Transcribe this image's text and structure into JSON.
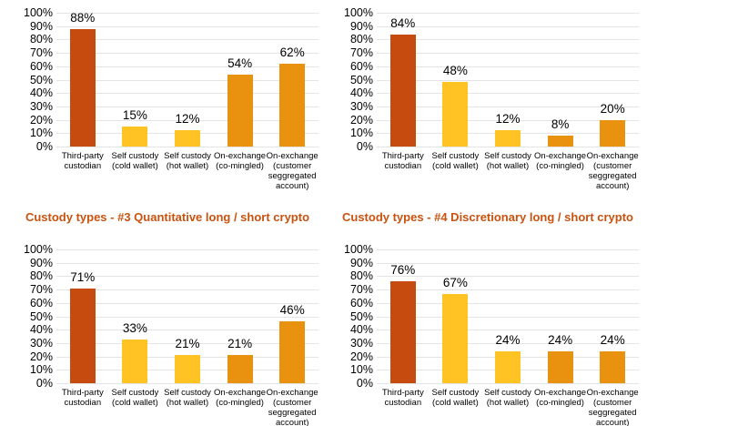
{
  "page": {
    "background": "#ffffff",
    "description": "Four bar charts comparing crypto fund custody types"
  },
  "style": {
    "accent_title_color": "#C9520F",
    "bar_color_third_party_custodian": "#C54B0E",
    "bar_color_self_custody": "#FFC323",
    "bar_color_on_exchange": "#E89210",
    "gridline_color": "#E4E4E4",
    "text_color": "#000000"
  },
  "chart_data": [
    {
      "type": "bar",
      "position": "top-left",
      "title": "",
      "categories": [
        "Third-party custodian",
        "Self custody (cold wallet)",
        "Self custody (hot wallet)",
        "On-exchange (co-mingled)",
        "On-exchange (customer seggregated account)"
      ],
      "category_lines": [
        [
          "Third-party",
          "custodian"
        ],
        [
          "Self custody",
          "(cold wallet)"
        ],
        [
          "Self custody",
          "(hot wallet)"
        ],
        [
          "On-exchange",
          "(co-mingled)"
        ],
        [
          "On-exchange",
          "(customer",
          "seggregated",
          "account)"
        ]
      ],
      "values": [
        88,
        15,
        12,
        54,
        62
      ],
      "data_labels": [
        "88%",
        "15%",
        "12%",
        "54%",
        "62%"
      ],
      "bar_colors": [
        "#C54B0E",
        "#FFC323",
        "#FFC323",
        "#E89210",
        "#E89210"
      ],
      "ylim": [
        0,
        100
      ],
      "ytick_step": 10,
      "ytick_labels": [
        "0%",
        "10%",
        "20%",
        "30%",
        "40%",
        "50%",
        "60%",
        "70%",
        "80%",
        "90%",
        "100%"
      ],
      "grid": true,
      "legend": false
    },
    {
      "type": "bar",
      "position": "top-right",
      "title": "",
      "categories": [
        "Third-party custodian",
        "Self custody (cold wallet)",
        "Self custody (hot wallet)",
        "On-exchange (co-mingled)",
        "On-exchange (customer seggregated account)"
      ],
      "category_lines": [
        [
          "Third-party",
          "custodian"
        ],
        [
          "Self custody",
          "(cold wallet)"
        ],
        [
          "Self custody",
          "(hot wallet)"
        ],
        [
          "On-exchange",
          "(co-mingled)"
        ],
        [
          "On-exchange",
          "(customer",
          "seggregated",
          "account)"
        ]
      ],
      "values": [
        84,
        48,
        12,
        8,
        20
      ],
      "data_labels": [
        "84%",
        "48%",
        "12%",
        "8%",
        "20%"
      ],
      "bar_colors": [
        "#C54B0E",
        "#FFC323",
        "#FFC323",
        "#E89210",
        "#E89210"
      ],
      "ylim": [
        0,
        100
      ],
      "ytick_step": 10,
      "ytick_labels": [
        "0%",
        "10%",
        "20%",
        "30%",
        "40%",
        "50%",
        "60%",
        "70%",
        "80%",
        "90%",
        "100%"
      ],
      "grid": true,
      "legend": false
    },
    {
      "type": "bar",
      "position": "bottom-left",
      "title": "Custody types - #3 Quantitative long / short crypto",
      "categories": [
        "Third-party custodian",
        "Self custody (cold wallet)",
        "Self custody (hot wallet)",
        "On-exchange (co-mingled)",
        "On-exchange (customer seggregated account)"
      ],
      "category_lines": [
        [
          "Third-party",
          "custodian"
        ],
        [
          "Self custody",
          "(cold wallet)"
        ],
        [
          "Self custody",
          "(hot wallet)"
        ],
        [
          "On-exchange",
          "(co-mingled)"
        ],
        [
          "On-exchange",
          "(customer",
          "seggregated",
          "account)"
        ]
      ],
      "values": [
        71,
        33,
        21,
        21,
        46
      ],
      "data_labels": [
        "71%",
        "33%",
        "21%",
        "21%",
        "46%"
      ],
      "bar_colors": [
        "#C54B0E",
        "#FFC323",
        "#FFC323",
        "#E89210",
        "#E89210"
      ],
      "ylim": [
        0,
        100
      ],
      "ytick_step": 10,
      "ytick_labels": [
        "0%",
        "10%",
        "20%",
        "30%",
        "40%",
        "50%",
        "60%",
        "70%",
        "80%",
        "90%",
        "100%"
      ],
      "grid": true,
      "legend": false
    },
    {
      "type": "bar",
      "position": "bottom-right",
      "title": "Custody types - #4 Discretionary long / short crypto",
      "categories": [
        "Third-party custodian",
        "Self custody (cold wallet)",
        "Self custody (hot wallet)",
        "On-exchange (co-mingled)",
        "On-exchange (customer seggregated account)"
      ],
      "category_lines": [
        [
          "Third-party",
          "custodian"
        ],
        [
          "Self custody",
          "(cold wallet)"
        ],
        [
          "Self custody",
          "(hot wallet)"
        ],
        [
          "On-exchange",
          "(co-mingled)"
        ],
        [
          "On-exchange",
          "(customer",
          "seggregated",
          "account)"
        ]
      ],
      "values": [
        76,
        67,
        24,
        24,
        24
      ],
      "data_labels": [
        "76%",
        "67%",
        "24%",
        "24%",
        "24%"
      ],
      "bar_colors": [
        "#C54B0E",
        "#FFC323",
        "#FFC323",
        "#E89210",
        "#E89210"
      ],
      "ylim": [
        0,
        100
      ],
      "ytick_step": 10,
      "ytick_labels": [
        "0%",
        "10%",
        "20%",
        "30%",
        "40%",
        "50%",
        "60%",
        "70%",
        "80%",
        "90%",
        "100%"
      ],
      "grid": true,
      "legend": false
    }
  ]
}
